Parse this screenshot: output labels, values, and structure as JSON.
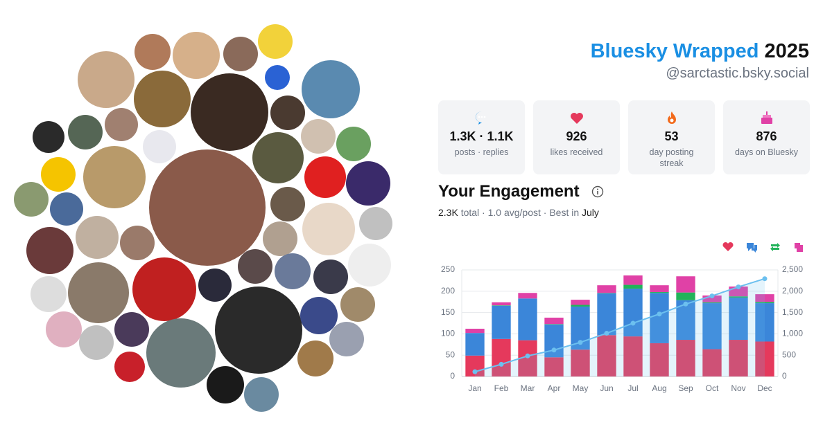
{
  "header": {
    "title": "Bluesky Wrapped",
    "year": "2025",
    "handle": "@sarctastic.bsky.social"
  },
  "stats": [
    {
      "value": "1.3K · 1.1K",
      "label": "posts · replies"
    },
    {
      "value": "926",
      "label": "likes received"
    },
    {
      "value": "53",
      "label": "day posting streak"
    },
    {
      "value": "876",
      "label": "days on Bluesky"
    }
  ],
  "engagement": {
    "title": "Your Engagement",
    "total": "2.3K",
    "middle": "total · 1.0 avg/post · Best in",
    "best": "July"
  },
  "chart_data": {
    "type": "bar",
    "stacked": true,
    "categories": [
      "Jan",
      "Feb",
      "Mar",
      "Apr",
      "May",
      "Jun",
      "Jul",
      "Aug",
      "Sep",
      "Oct",
      "Nov",
      "Dec"
    ],
    "series": [
      {
        "color": "#e5395c",
        "values": [
          49,
          88,
          85,
          45,
          63,
          97,
          94,
          78,
          86,
          64,
          86,
          82
        ]
      },
      {
        "color": "#3b86d9",
        "values": [
          53,
          78,
          98,
          77,
          101,
          98,
          112,
          118,
          93,
          108,
          99,
          90
        ]
      },
      {
        "color": "#22b35a",
        "values": [
          0,
          1,
          0,
          1,
          4,
          1,
          9,
          2,
          18,
          2,
          3,
          3
        ]
      },
      {
        "color": "#e041a6",
        "values": [
          10,
          7,
          13,
          15,
          12,
          18,
          22,
          16,
          38,
          16,
          23,
          18
        ]
      },
      {
        "type": "line",
        "axis": "y2",
        "color": "#6cc0ef",
        "values": [
          112,
          286,
          482,
          620,
          800,
          1014,
          1251,
          1465,
          1700,
          1890,
          2101,
          2294
        ]
      }
    ],
    "ylim": [
      0,
      250
    ],
    "yticks": [
      0,
      50,
      100,
      150,
      200,
      250
    ],
    "y2lim": [
      0,
      2500
    ],
    "y2ticks": [
      0,
      500,
      {
        "value": 1000,
        "label": "1,000"
      },
      {
        "value": 1500,
        "label": "1,500"
      },
      {
        "value": 2000,
        "label": "2,000"
      },
      {
        "value": 2500,
        "label": "2,500"
      }
    ],
    "grid": true
  }
}
